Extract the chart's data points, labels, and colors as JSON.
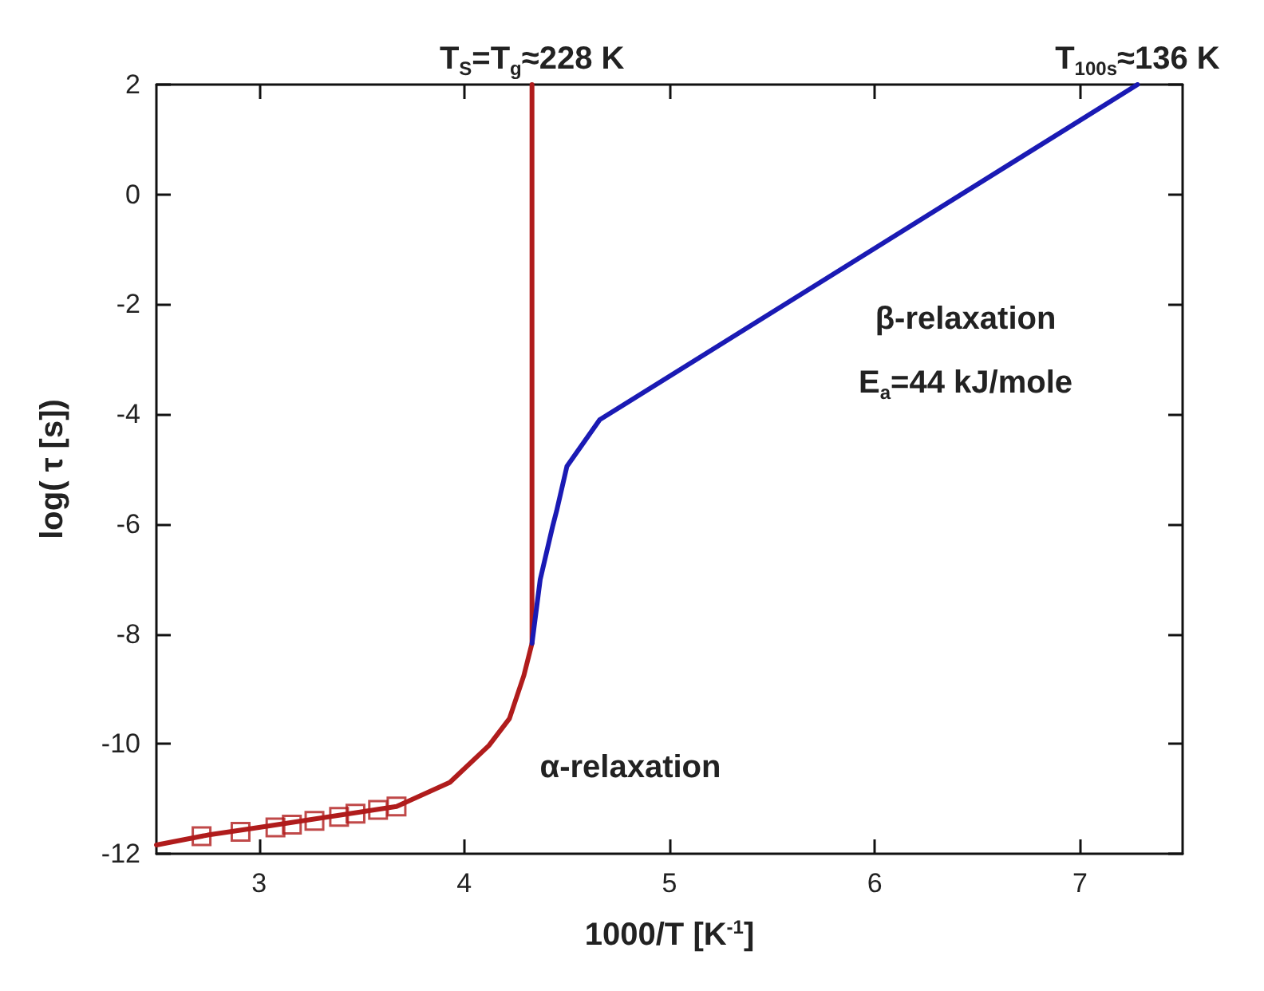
{
  "chart_data": {
    "type": "line",
    "xlabel": "1000/T [K$^{-1}$]",
    "ylabel": "log( τ [s])",
    "xlim": [
      2.5,
      7.5
    ],
    "xticks": [
      3,
      4,
      5,
      6,
      7
    ],
    "ylim": [
      -12,
      2
    ],
    "yticks": [
      -12,
      -10,
      -8,
      -6,
      -4,
      -2,
      0,
      2
    ],
    "grid": false,
    "series": [
      {
        "color": "#b01c1c",
        "marker": "none",
        "x": [
          2.5,
          2.75,
          3.0,
          3.67,
          3.93,
          4.12,
          4.22,
          4.29,
          4.33,
          4.33
        ],
        "values": [
          -11.84,
          -11.66,
          -11.52,
          -11.14,
          -10.7,
          -10.03,
          -9.54,
          -8.76,
          -8.17,
          2
        ]
      },
      {
        "type": "scatter",
        "color": "#b01c1c",
        "marker": "square",
        "x": [
          2.72,
          2.91,
          3.08,
          3.16,
          3.27,
          3.39,
          3.47,
          3.58,
          3.67
        ],
        "values": [
          -11.68,
          -11.6,
          -11.52,
          -11.47,
          -11.4,
          -11.33,
          -11.27,
          -11.2,
          -11.14
        ]
      },
      {
        "color": "#1a1ab4",
        "marker": "none",
        "x": [
          4.33,
          4.37,
          4.43,
          4.45,
          4.5,
          4.66,
          7.28
        ],
        "values": [
          -8.17,
          -7.01,
          -6.05,
          -5.76,
          -4.95,
          -4.1,
          2
        ]
      }
    ],
    "annotations": [
      {
        "text": "T$_{S}$=T$_{g}$≈228 K",
        "x": 4.33,
        "y": 2
      },
      {
        "text": "T$_{100s}$≈136 K",
        "x": 7.28,
        "y": 2
      },
      "β-relaxation",
      "E$_{a}$=44 kJ/mole",
      "α-relaxation"
    ]
  }
}
